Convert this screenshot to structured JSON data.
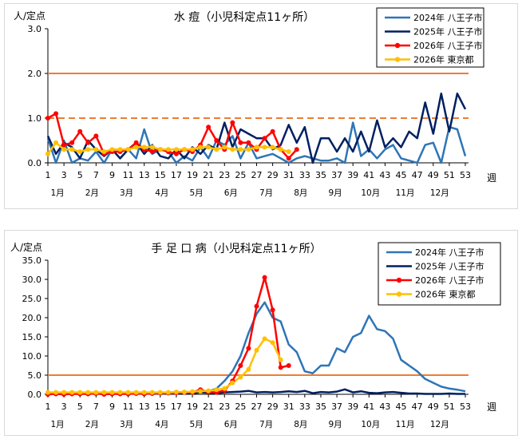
{
  "chart_data": [
    {
      "type": "line",
      "title": "水 痘（小児科定点11ヶ所）",
      "ylabel": "人/定点",
      "xlabel": "週",
      "ylim": [
        0,
        3.0
      ],
      "yticks": [
        "0.0",
        "1.0",
        "2.0",
        "3.0"
      ],
      "xticks": [
        "1",
        "3",
        "5",
        "7",
        "9",
        "11",
        "13",
        "15",
        "17",
        "19",
        "21",
        "23",
        "25",
        "27",
        "29",
        "31",
        "33",
        "35",
        "37",
        "39",
        "41",
        "43",
        "45",
        "47",
        "49",
        "51",
        "53"
      ],
      "months": [
        "1月",
        "2月",
        "3月",
        "4月",
        "5月",
        "6月",
        "7月",
        "8月",
        "9月",
        "10月",
        "11月",
        "12月"
      ],
      "ref_lines": [
        {
          "value": 2.0,
          "style": "solid",
          "color": "#ED7D31"
        },
        {
          "value": 1.0,
          "style": "dashed",
          "color": "#ED7D31"
        }
      ],
      "series": [
        {
          "name": "2024年 八王子市",
          "color": "#2E75B6",
          "marker": false,
          "values": [
            0.55,
            0.0,
            0.5,
            0.0,
            0.1,
            0.05,
            0.25,
            0.0,
            0.3,
            0.1,
            0.3,
            0.1,
            0.75,
            0.2,
            0.3,
            0.25,
            0.0,
            0.15,
            0.05,
            0.35,
            0.1,
            0.5,
            0.4,
            0.6,
            0.1,
            0.45,
            0.1,
            0.15,
            0.2,
            0.1,
            0.0,
            0.1,
            0.15,
            0.1,
            0.05,
            0.05,
            0.1,
            0.0,
            0.9,
            0.15,
            0.3,
            0.1,
            0.3,
            0.4,
            0.1,
            0.05,
            0.0,
            0.4,
            0.45,
            0.0,
            0.8,
            0.75,
            0.15
          ]
        },
        {
          "name": "2025年 八王子市",
          "color": "#002060",
          "marker": false,
          "values": [
            0.6,
            0.2,
            0.45,
            0.35,
            0.1,
            0.5,
            0.3,
            0.15,
            0.3,
            0.1,
            0.3,
            0.45,
            0.2,
            0.4,
            0.15,
            0.1,
            0.3,
            0.1,
            0.35,
            0.2,
            0.4,
            0.3,
            0.9,
            0.35,
            0.75,
            0.65,
            0.55,
            0.55,
            0.3,
            0.4,
            0.85,
            0.45,
            0.8,
            0.0,
            0.55,
            0.55,
            0.25,
            0.55,
            0.25,
            0.7,
            0.25,
            0.95,
            0.35,
            0.55,
            0.35,
            0.7,
            0.55,
            1.35,
            0.65,
            1.55,
            0.7,
            1.55,
            1.2
          ]
        },
        {
          "name": "2026年 八王子市",
          "color": "#FF0000",
          "marker": true,
          "values": [
            1.0,
            1.1,
            0.4,
            0.45,
            0.7,
            0.45,
            0.6,
            0.2,
            0.25,
            0.25,
            0.3,
            0.45,
            0.3,
            0.25,
            0.3,
            0.25,
            0.2,
            0.3,
            0.25,
            0.4,
            0.8,
            0.5,
            0.3,
            0.9,
            0.45,
            0.45,
            0.3,
            0.55,
            0.7,
            0.3,
            0.1,
            0.3
          ]
        },
        {
          "name": "2026年 東京都",
          "color": "#FFC000",
          "marker": true,
          "values": [
            0.2,
            0.45,
            0.3,
            0.3,
            0.25,
            0.3,
            0.3,
            0.25,
            0.3,
            0.3,
            0.3,
            0.35,
            0.35,
            0.35,
            0.3,
            0.3,
            0.3,
            0.3,
            0.3,
            0.35,
            0.35,
            0.3,
            0.35,
            0.3,
            0.3,
            0.3,
            0.35,
            0.35,
            0.35,
            0.3,
            0.25
          ]
        }
      ]
    },
    {
      "type": "line",
      "title": "手 足 口 病（小児科定点11ヶ所）",
      "ylabel": "人/定点",
      "xlabel": "週",
      "ylim": [
        0,
        35.0
      ],
      "yticks": [
        "0.0",
        "5.0",
        "10.0",
        "15.0",
        "20.0",
        "25.0",
        "30.0",
        "35.0"
      ],
      "xticks": [
        "1",
        "3",
        "5",
        "7",
        "9",
        "11",
        "13",
        "15",
        "17",
        "19",
        "21",
        "23",
        "25",
        "27",
        "29",
        "31",
        "33",
        "35",
        "37",
        "39",
        "41",
        "43",
        "45",
        "47",
        "49",
        "51",
        "53"
      ],
      "months": [
        "1月",
        "2月",
        "3月",
        "4月",
        "5月",
        "6月",
        "7月",
        "8月",
        "9月",
        "10月",
        "11月",
        "12月"
      ],
      "ref_lines": [
        {
          "value": 5.0,
          "style": "solid",
          "color": "#ED7D31"
        }
      ],
      "series": [
        {
          "name": "2024年 八王子市",
          "color": "#2E75B6",
          "marker": false,
          "values": [
            0.2,
            0.1,
            0.2,
            0.1,
            0.2,
            0.1,
            0.2,
            0.1,
            0.2,
            0.1,
            0.2,
            0.1,
            0.2,
            0.1,
            0.2,
            0.2,
            0.3,
            0.3,
            0.5,
            0.5,
            0.8,
            1.5,
            3.5,
            6.0,
            10.0,
            16.0,
            21.0,
            24.0,
            20.0,
            19.0,
            13.0,
            11.0,
            6.0,
            5.5,
            7.5,
            7.5,
            12.0,
            11.0,
            15.0,
            16.0,
            20.5,
            17.0,
            16.5,
            14.5,
            9.0,
            7.5,
            6.0,
            4.0,
            3.0,
            2.0,
            1.5,
            1.2,
            0.8
          ]
        },
        {
          "name": "2025年 八王子市",
          "color": "#002060",
          "marker": false,
          "values": [
            0.3,
            0.2,
            0.3,
            0.2,
            0.2,
            0.2,
            0.2,
            0.2,
            0.2,
            0.2,
            0.2,
            0.2,
            0.2,
            0.2,
            0.2,
            0.2,
            0.2,
            0.3,
            0.3,
            0.5,
            0.4,
            0.3,
            0.5,
            0.6,
            0.7,
            0.9,
            0.5,
            0.6,
            0.5,
            0.6,
            0.8,
            0.6,
            0.9,
            0.3,
            0.6,
            0.5,
            0.7,
            1.3,
            0.5,
            0.8,
            0.4,
            0.3,
            0.5,
            0.6,
            0.4,
            0.2,
            0.2,
            0.1,
            0.1,
            0.1,
            0.2,
            0.1,
            0.1
          ]
        },
        {
          "name": "2026年 八王子市",
          "color": "#FF0000",
          "marker": true,
          "values": [
            0.0,
            0.1,
            0.0,
            0.1,
            0.1,
            0.1,
            0.2,
            0.0,
            0.1,
            0.1,
            0.1,
            0.2,
            0.1,
            0.2,
            0.3,
            0.3,
            0.4,
            0.5,
            0.5,
            1.2,
            0.6,
            0.5,
            1.0,
            3.5,
            7.5,
            12.0,
            23.0,
            30.5,
            22.0,
            7.0,
            7.5
          ]
        },
        {
          "name": "2026年 東京都",
          "color": "#FFC000",
          "marker": true,
          "values": [
            0.5,
            0.5,
            0.5,
            0.5,
            0.5,
            0.5,
            0.5,
            0.5,
            0.5,
            0.5,
            0.5,
            0.5,
            0.5,
            0.5,
            0.5,
            0.5,
            0.6,
            0.6,
            0.7,
            0.8,
            0.9,
            1.2,
            1.5,
            3.0,
            4.5,
            6.5,
            11.5,
            14.5,
            13.5,
            9.0
          ]
        }
      ]
    }
  ]
}
